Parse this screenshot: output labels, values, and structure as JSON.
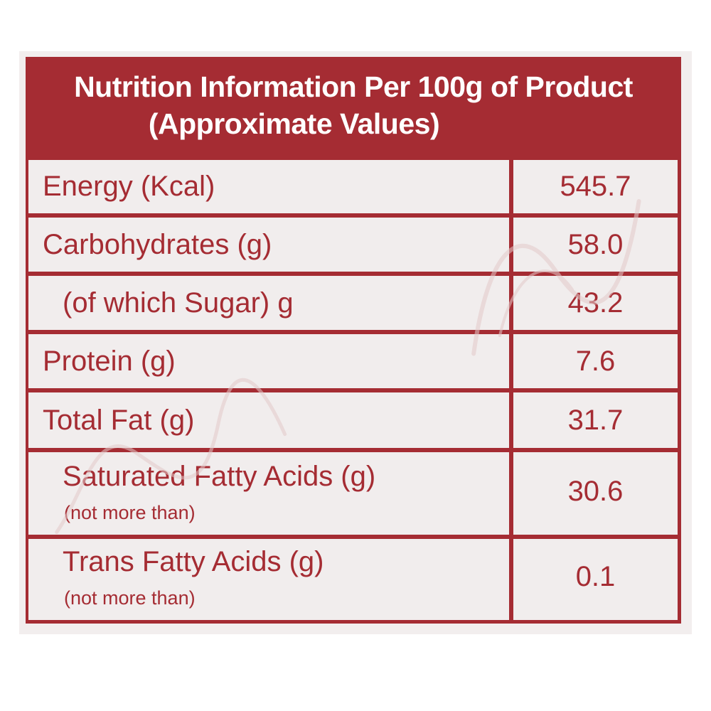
{
  "header": {
    "line1": "Nutrition Information Per 100g of Product",
    "line2": "(Approximate Values)"
  },
  "rows": [
    {
      "name": "Energy (Kcal)",
      "value": "545.7"
    },
    {
      "name": "Carbohydrates (g)",
      "value": "58.0"
    },
    {
      "name": "(of which Sugar) g",
      "value": "43.2"
    },
    {
      "name": "Protein (g)",
      "value": "7.6"
    },
    {
      "name": "Total Fat (g)",
      "value": "31.7"
    },
    {
      "name": "Saturated Fatty Acids (g)",
      "note": "(not more than)",
      "value": "30.6"
    },
    {
      "name": "Trans Fatty Acids (g)",
      "note": "(not more than)",
      "value": "0.1"
    }
  ],
  "colors": {
    "border": "#a52c33",
    "cell_background": "#f1eded",
    "header_text": "#ffffff"
  }
}
